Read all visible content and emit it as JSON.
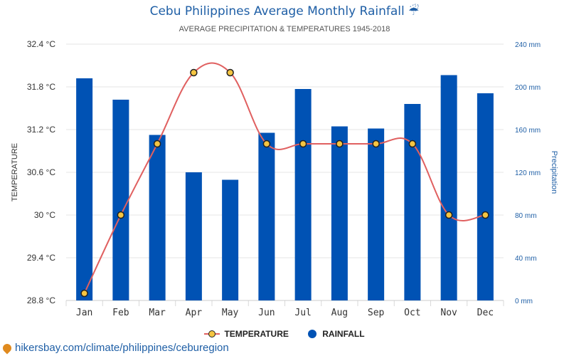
{
  "title": "Cebu Philippines Average Monthly Rainfall ☔",
  "subtitle": "AVERAGE PRECIPITATION & TEMPERATURES 1945-2018",
  "footer": "hikersbay.com/climate/philippines/ceburegion",
  "colors": {
    "bar": "#0052b4",
    "line": "#e06060",
    "marker": "#f5c542",
    "title": "#1f5fa6"
  },
  "chart_data": {
    "type": "bar",
    "categories": [
      "Jan",
      "Feb",
      "Mar",
      "Apr",
      "May",
      "Jun",
      "Jul",
      "Aug",
      "Sep",
      "Oct",
      "Nov",
      "Dec"
    ],
    "series": [
      {
        "name": "RAINFALL",
        "type": "bar",
        "axis": "right",
        "values": [
          208,
          188,
          155,
          120,
          113,
          157,
          198,
          163,
          161,
          184,
          211,
          194
        ]
      },
      {
        "name": "TEMPERATURE",
        "type": "line",
        "axis": "left",
        "values": [
          28.9,
          30,
          31,
          32,
          32,
          31,
          31,
          31,
          31,
          31,
          30,
          30
        ]
      }
    ],
    "left_axis": {
      "label": "TEMPERATURE",
      "range": [
        28.8,
        32.4
      ],
      "ticks": [
        "32.4 °C",
        "31.8 °C",
        "31.2 °C",
        "30.6 °C",
        "30 °C",
        "29.4 °C",
        "28.8 °C"
      ]
    },
    "right_axis": {
      "label": "Precipitation",
      "range": [
        0,
        240
      ],
      "ticks": [
        "240 mm",
        "200 mm",
        "160 mm",
        "120 mm",
        "80 mm",
        "40 mm",
        "0 mm"
      ]
    },
    "grid": true,
    "legend_position": "bottom-center"
  }
}
